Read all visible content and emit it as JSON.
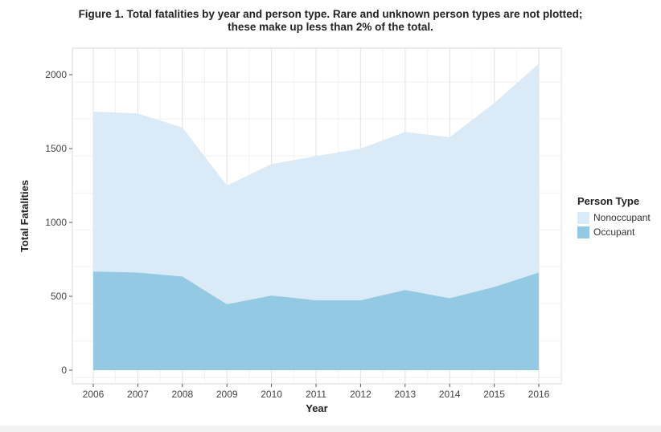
{
  "chart_data": {
    "type": "area",
    "stacked": true,
    "title": "Figure 1. Total fatalities by year and person type. Rare and unknown person types are not plotted; these make up less than 2% of the total.",
    "title_lines": [
      "Figure 1. Total fatalities by year and person type. Rare and unknown person types are not plotted;",
      "these make up less than 2% of the total."
    ],
    "xlabel": "Year",
    "ylabel": "Total Fatalities",
    "x": [
      2006,
      2007,
      2008,
      2009,
      2010,
      2011,
      2012,
      2013,
      2014,
      2015,
      2016
    ],
    "xticks": [
      "2006",
      "2007",
      "2008",
      "2009",
      "2010",
      "2011",
      "2012",
      "2013",
      "2014",
      "2015",
      "2016"
    ],
    "yticks": [
      "0",
      "500",
      "1000",
      "1500",
      "2000"
    ],
    "ylim": [
      0,
      2200
    ],
    "grid": true,
    "legend": {
      "title": "Person Type",
      "placement": "right"
    },
    "series": [
      {
        "name": "Occupant",
        "color": "#94c9e3",
        "values": [
          668,
          661,
          634,
          446,
          505,
          473,
          473,
          543,
          487,
          563,
          661
        ]
      },
      {
        "name": "Nonoccupant",
        "color": "#dbeaf7",
        "values": [
          1082,
          1076,
          1009,
          804,
          890,
          976,
          1027,
          1069,
          1090,
          1245,
          1413
        ]
      }
    ]
  }
}
